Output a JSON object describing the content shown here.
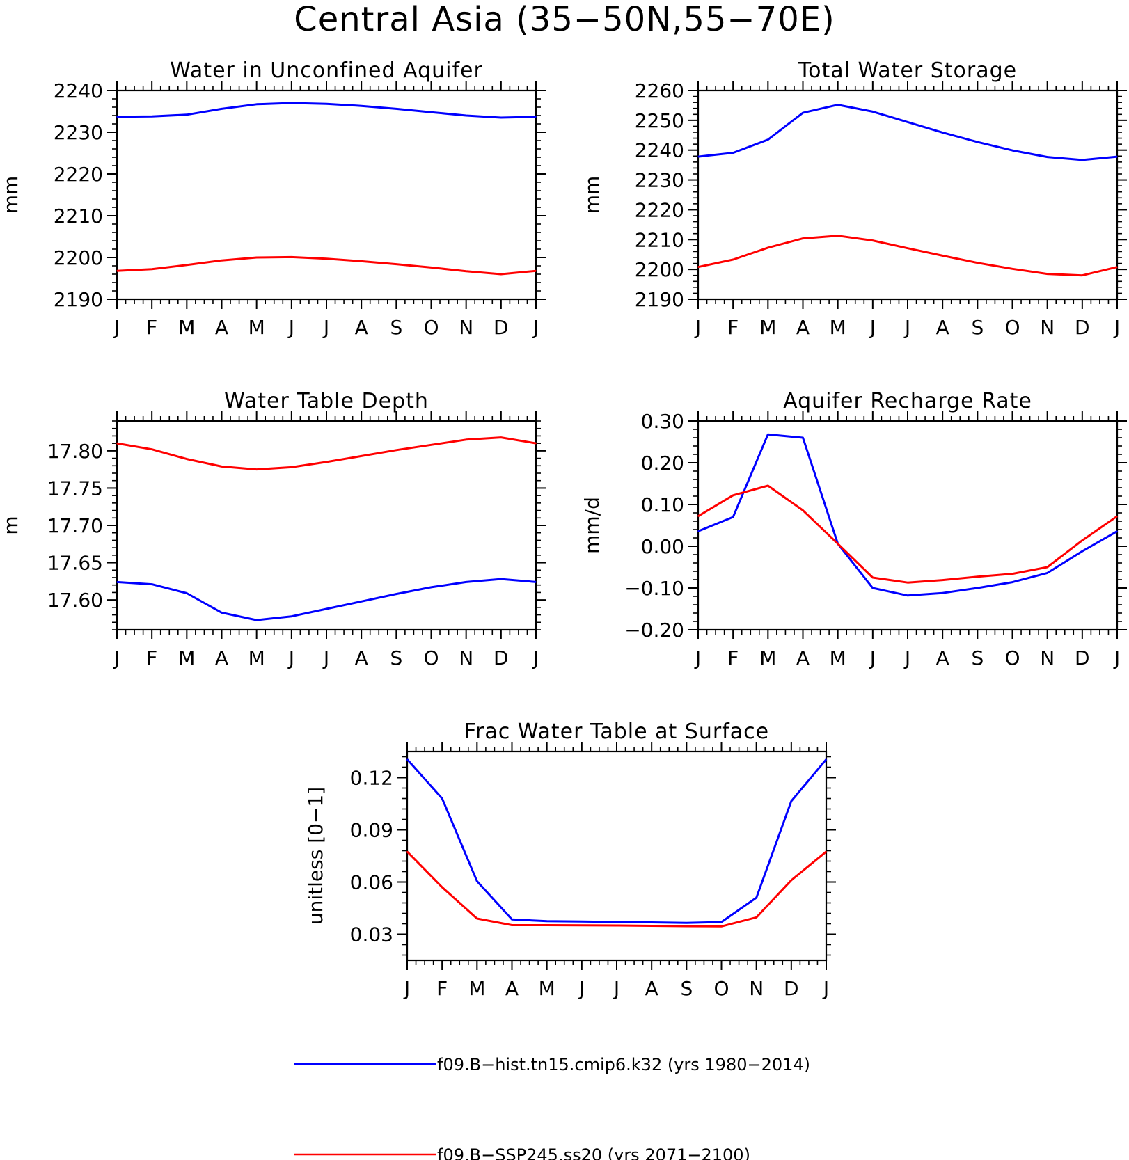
{
  "title": "Central Asia (35−50N,55−70E)",
  "month_labels": [
    "J",
    "F",
    "M",
    "A",
    "M",
    "J",
    "J",
    "A",
    "S",
    "O",
    "N",
    "D",
    "J"
  ],
  "colors": {
    "hist": "#0000ff",
    "future": "#ff0000",
    "axis": "#000000"
  },
  "legend": [
    {
      "label": "f09.B−hist.tn15.cmip6.k32 (yrs 1980−2014)",
      "color": "#0000ff"
    },
    {
      "label": "f09.B−SSP245.ss20 (yrs 2071−2100)",
      "color": "#ff0000"
    }
  ],
  "chart_data": [
    {
      "type": "line",
      "title": "Water in Unconfined Aquifer",
      "ylabel": "mm",
      "ylim": [
        2190,
        2240
      ],
      "yticks": [
        2190,
        2200,
        2210,
        2220,
        2230,
        2240
      ],
      "ytick_labels": [
        "2190",
        "2200",
        "2210",
        "2220",
        "2230",
        "2240"
      ],
      "series": [
        {
          "key": "hist",
          "values": [
            2233.7,
            2233.8,
            2234.2,
            2235.6,
            2236.7,
            2237.0,
            2236.8,
            2236.3,
            2235.6,
            2234.8,
            2234.0,
            2233.5,
            2233.7
          ]
        },
        {
          "key": "future",
          "values": [
            2196.8,
            2197.2,
            2198.2,
            2199.3,
            2200.0,
            2200.1,
            2199.7,
            2199.1,
            2198.4,
            2197.6,
            2196.7,
            2196.0,
            2196.8
          ]
        }
      ]
    },
    {
      "type": "line",
      "title": "Total Water Storage",
      "ylabel": "mm",
      "ylim": [
        2190,
        2260
      ],
      "yticks": [
        2190,
        2200,
        2210,
        2220,
        2230,
        2240,
        2250,
        2260
      ],
      "ytick_labels": [
        "2190",
        "2200",
        "2210",
        "2220",
        "2230",
        "2240",
        "2250",
        "2260"
      ],
      "series": [
        {
          "key": "hist",
          "values": [
            2237.8,
            2239.1,
            2243.5,
            2252.5,
            2255.2,
            2252.9,
            2249.4,
            2245.9,
            2242.7,
            2239.9,
            2237.7,
            2236.7,
            2237.8
          ]
        },
        {
          "key": "future",
          "values": [
            2200.8,
            2203.3,
            2207.3,
            2210.4,
            2211.3,
            2209.7,
            2207.1,
            2204.6,
            2202.2,
            2200.2,
            2198.5,
            2198.0,
            2200.8
          ]
        }
      ]
    },
    {
      "type": "line",
      "title": "Water Table Depth",
      "ylabel": "m",
      "ylim": [
        17.56,
        17.84
      ],
      "yticks": [
        17.6,
        17.65,
        17.7,
        17.75,
        17.8
      ],
      "ytick_labels": [
        "17.60",
        "17.65",
        "17.70",
        "17.75",
        "17.80"
      ],
      "series": [
        {
          "key": "hist",
          "values": [
            17.624,
            17.621,
            17.609,
            17.583,
            17.573,
            17.578,
            17.588,
            17.598,
            17.608,
            17.617,
            17.624,
            17.628,
            17.624
          ]
        },
        {
          "key": "future",
          "values": [
            17.81,
            17.802,
            17.789,
            17.779,
            17.775,
            17.778,
            17.785,
            17.793,
            17.801,
            17.808,
            17.815,
            17.818,
            17.81
          ]
        }
      ]
    },
    {
      "type": "line",
      "title": "Aquifer Recharge Rate",
      "ylabel": "mm/d",
      "ylim": [
        -0.2,
        0.3
      ],
      "yticks": [
        -0.2,
        -0.1,
        0.0,
        0.1,
        0.2,
        0.3
      ],
      "ytick_labels": [
        "−0.20",
        "−0.10",
        "0.00",
        "0.10",
        "0.20",
        "0.30"
      ],
      "series": [
        {
          "key": "hist",
          "values": [
            0.036,
            0.07,
            0.268,
            0.26,
            0.006,
            -0.1,
            -0.118,
            -0.112,
            -0.1,
            -0.086,
            -0.064,
            -0.012,
            0.036
          ]
        },
        {
          "key": "future",
          "values": [
            0.072,
            0.122,
            0.145,
            0.086,
            0.006,
            -0.075,
            -0.087,
            -0.081,
            -0.073,
            -0.066,
            -0.05,
            0.014,
            0.072
          ]
        }
      ]
    },
    {
      "type": "line",
      "title": "Frac Water Table at Surface",
      "ylabel": "unitless [0−1]",
      "ylim": [
        0.015,
        0.135
      ],
      "yticks": [
        0.03,
        0.06,
        0.09,
        0.12
      ],
      "ytick_labels": [
        "0.03",
        "0.06",
        "0.09",
        "0.12"
      ],
      "series": [
        {
          "key": "hist",
          "values": [
            0.1305,
            0.108,
            0.0605,
            0.0385,
            0.0375,
            0.0373,
            0.037,
            0.0368,
            0.0365,
            0.037,
            0.051,
            0.1065,
            0.1305
          ]
        },
        {
          "key": "future",
          "values": [
            0.0775,
            0.057,
            0.039,
            0.0352,
            0.0352,
            0.0351,
            0.035,
            0.0348,
            0.0346,
            0.0345,
            0.0397,
            0.061,
            0.0775
          ]
        }
      ]
    }
  ]
}
